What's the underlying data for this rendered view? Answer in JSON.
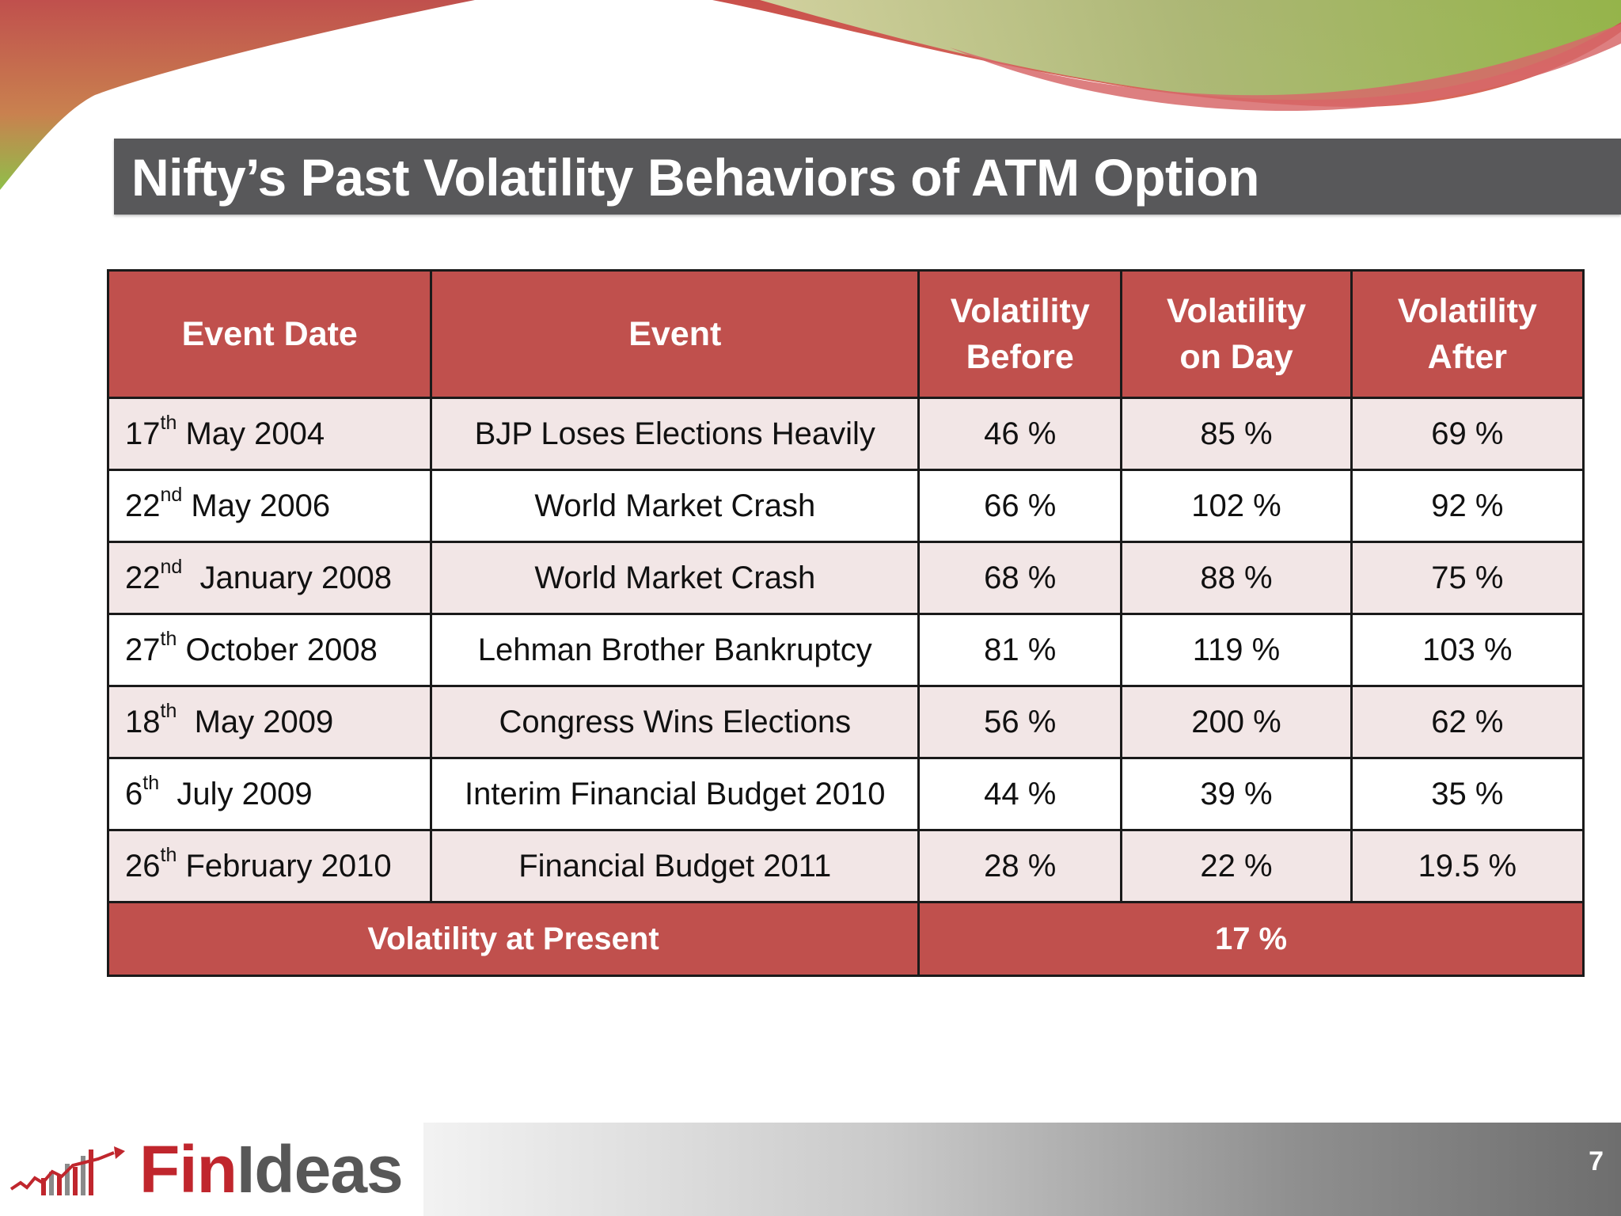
{
  "slide": {
    "title": "Nifty’s Past Volatility Behaviors of ATM Option",
    "page_number": "7"
  },
  "colors": {
    "header_red": "#c0504d",
    "title_bar": "#58585a",
    "row_alt": "#f2e6e6",
    "wave_green": "#8fbf4a"
  },
  "table": {
    "headers": {
      "event_date": "Event Date",
      "event": "Event",
      "vol_before_1": "Volatility",
      "vol_before_2": "Before",
      "vol_on_day_1": "Volatility",
      "vol_on_day_2": "on Day",
      "vol_after_1": "Volatility",
      "vol_after_2": "After"
    },
    "rows": [
      {
        "day": "17",
        "suffix": "th",
        "month_year": " May 2004",
        "event": "BJP Loses Elections Heavily",
        "before": "46 %",
        "on_day": "85 %",
        "after": "69 %"
      },
      {
        "day": "22",
        "suffix": "nd",
        "month_year": " May 2006",
        "event": "World Market Crash",
        "before": "66 %",
        "on_day": "102 %",
        "after": "92 %"
      },
      {
        "day": "22",
        "suffix": "nd",
        "month_year": "  January 2008",
        "event": "World Market Crash",
        "before": "68 %",
        "on_day": "88 %",
        "after": "75 %"
      },
      {
        "day": "27",
        "suffix": "th",
        "month_year": " October 2008",
        "event": "Lehman Brother Bankruptcy",
        "before": "81 %",
        "on_day": "119 %",
        "after": "103 %"
      },
      {
        "day": "18",
        "suffix": "th",
        "month_year": "  May 2009",
        "event": "Congress Wins Elections",
        "before": "56 %",
        "on_day": "200 %",
        "after": "62 %"
      },
      {
        "day": "6",
        "suffix": "th",
        "month_year": "  July 2009",
        "event": "Interim Financial Budget 2010",
        "before": "44 %",
        "on_day": "39 %",
        "after": "35 %"
      },
      {
        "day": "26",
        "suffix": "th",
        "month_year": " February 2010",
        "event": "Financial Budget 2011",
        "before": "28 %",
        "on_day": "22 %",
        "after": "19.5 %"
      }
    ],
    "summary": {
      "label": "Volatility at Present",
      "value": "17 %"
    }
  },
  "footer": {
    "logo_fin": "Fin",
    "logo_ideas": "Ideas",
    "logo_icon": "rising-bar-chart-icon"
  }
}
